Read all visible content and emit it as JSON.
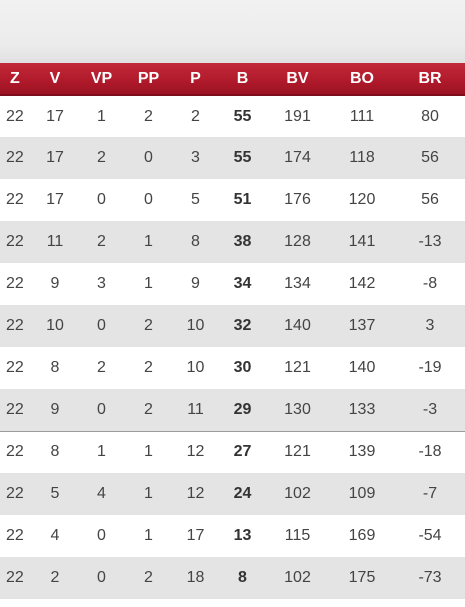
{
  "table": {
    "headers": [
      "Z",
      "V",
      "VP",
      "PP",
      "P",
      "B",
      "BV",
      "BO",
      "BR"
    ],
    "rows": [
      [
        "22",
        "17",
        "1",
        "2",
        "2",
        "55",
        "191",
        "111",
        "80"
      ],
      [
        "22",
        "17",
        "2",
        "0",
        "3",
        "55",
        "174",
        "118",
        "56"
      ],
      [
        "22",
        "17",
        "0",
        "0",
        "5",
        "51",
        "176",
        "120",
        "56"
      ],
      [
        "22",
        "11",
        "2",
        "1",
        "8",
        "38",
        "128",
        "141",
        "-13"
      ],
      [
        "22",
        "9",
        "3",
        "1",
        "9",
        "34",
        "134",
        "142",
        "-8"
      ],
      [
        "22",
        "10",
        "0",
        "2",
        "10",
        "32",
        "140",
        "137",
        "3"
      ],
      [
        "22",
        "8",
        "2",
        "2",
        "10",
        "30",
        "121",
        "140",
        "-19"
      ],
      [
        "22",
        "9",
        "0",
        "2",
        "11",
        "29",
        "130",
        "133",
        "-3"
      ],
      [
        "22",
        "8",
        "1",
        "1",
        "12",
        "27",
        "121",
        "139",
        "-18"
      ],
      [
        "22",
        "5",
        "4",
        "1",
        "12",
        "24",
        "102",
        "109",
        "-7"
      ],
      [
        "22",
        "4",
        "0",
        "1",
        "17",
        "13",
        "115",
        "169",
        "-54"
      ],
      [
        "22",
        "2",
        "0",
        "2",
        "18",
        "8",
        "102",
        "175",
        "-73"
      ]
    ]
  },
  "colors": {
    "header_bg": "#b01a2b",
    "header_text": "#ffffff",
    "row_alt_bg": "#e4e4e4",
    "cell_text": "#444444"
  }
}
